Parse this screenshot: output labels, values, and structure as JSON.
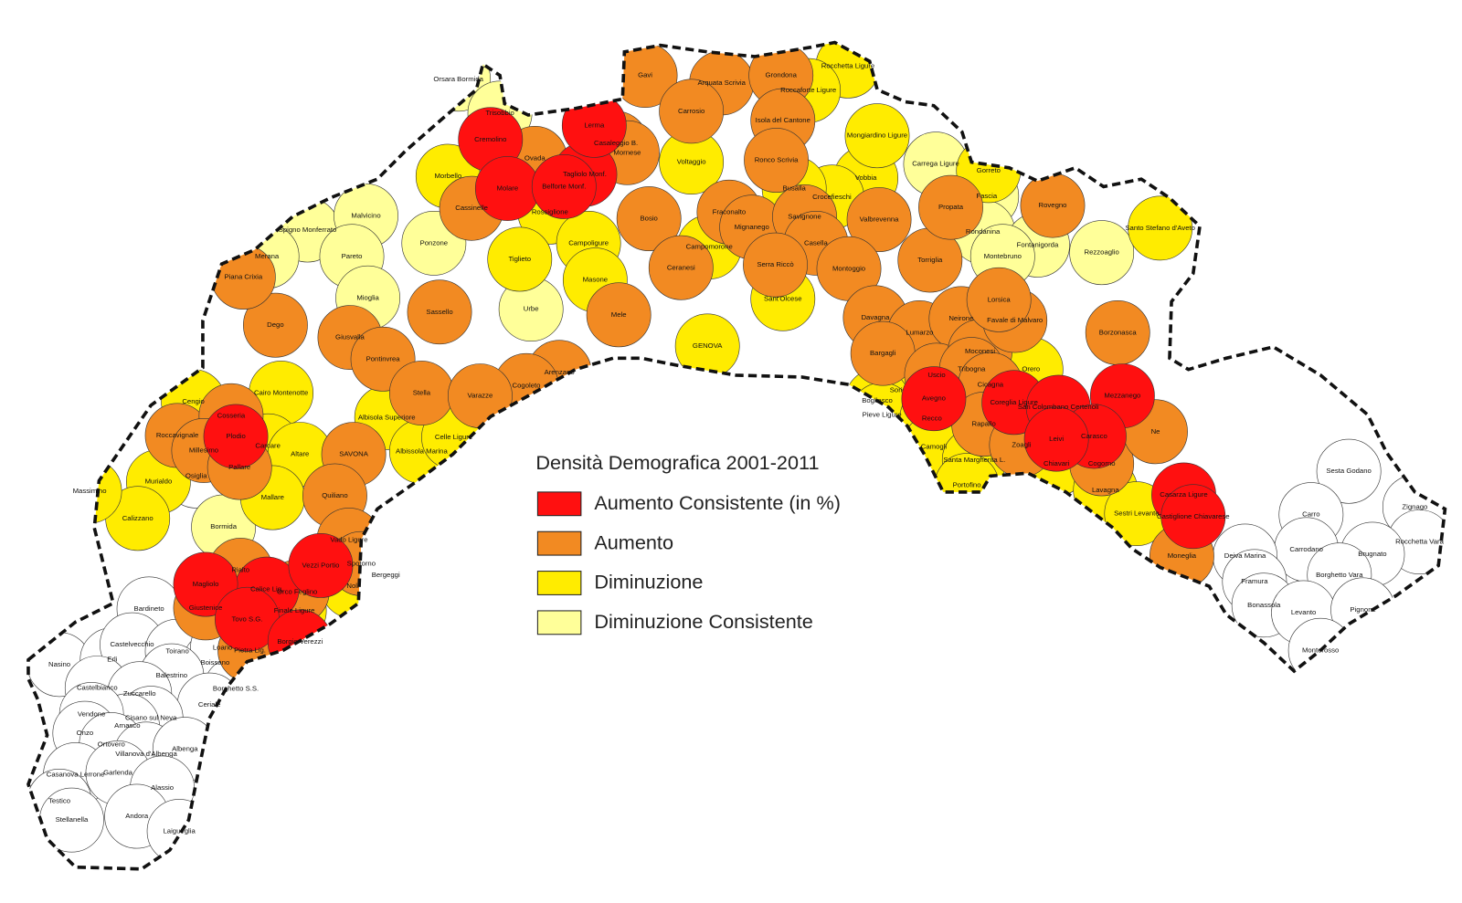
{
  "legend": {
    "title": "Densità Demografica 2001-2011",
    "items": [
      {
        "label": "Aumento Consistente (in %)",
        "color": "#ff1010"
      },
      {
        "label": "Aumento",
        "color": "#f28a22"
      },
      {
        "label": "Diminuzione",
        "color": "#ffec00"
      },
      {
        "label": "Diminuzione Consistente",
        "color": "#ffff99"
      }
    ]
  },
  "map": {
    "areas": [
      {
        "name": "Cremolino",
        "category": 0
      },
      {
        "name": "Molare",
        "category": 0
      },
      {
        "name": "Tagliolo Monf.",
        "category": 0
      },
      {
        "name": "Belforte Monf.",
        "category": 0
      },
      {
        "name": "Lerma",
        "category": 0
      },
      {
        "name": "Plodio",
        "category": 0
      },
      {
        "name": "Calice Lig.",
        "category": 0
      },
      {
        "name": "Magliolo",
        "category": 0
      },
      {
        "name": "Tovo S.G.",
        "category": 0
      },
      {
        "name": "Borgio Verezzi",
        "category": 0
      },
      {
        "name": "Vezzi Portio",
        "category": 0
      },
      {
        "name": "Avegno",
        "category": 0
      },
      {
        "name": "Coreglia Ligure",
        "category": 0
      },
      {
        "name": "San Colombano Certenoli",
        "category": 0
      },
      {
        "name": "Mezzanego",
        "category": 0
      },
      {
        "name": "Carasco",
        "category": 0
      },
      {
        "name": "Leivi",
        "category": 0
      },
      {
        "name": "Casarza Ligure",
        "category": 0
      },
      {
        "name": "Castiglione Chiavarese",
        "category": 0
      },
      {
        "name": "Gavi",
        "category": 1
      },
      {
        "name": "Arquata Scrivia",
        "category": 1
      },
      {
        "name": "Grondona",
        "category": 1
      },
      {
        "name": "Carrosio",
        "category": 1
      },
      {
        "name": "Casaleggio B.",
        "category": 1
      },
      {
        "name": "Mornese",
        "category": 1
      },
      {
        "name": "Ovada",
        "category": 1
      },
      {
        "name": "Cassinelle",
        "category": 1
      },
      {
        "name": "Isola del Cantone",
        "category": 1
      },
      {
        "name": "Ronco Scrivia",
        "category": 1
      },
      {
        "name": "Fraconalto",
        "category": 1
      },
      {
        "name": "Bosio",
        "category": 1
      },
      {
        "name": "Mignanego",
        "category": 1
      },
      {
        "name": "Savignone",
        "category": 1
      },
      {
        "name": "Casella",
        "category": 1
      },
      {
        "name": "Valbrevenna",
        "category": 1
      },
      {
        "name": "Serra Riccò",
        "category": 1
      },
      {
        "name": "Montoggio",
        "category": 1
      },
      {
        "name": "Torriglia",
        "category": 1
      },
      {
        "name": "Ceranesi",
        "category": 1
      },
      {
        "name": "Mele",
        "category": 1
      },
      {
        "name": "Arenzano",
        "category": 1
      },
      {
        "name": "Cogoleto",
        "category": 1
      },
      {
        "name": "Sassello",
        "category": 1
      },
      {
        "name": "Dego",
        "category": 1
      },
      {
        "name": "Giusvalla",
        "category": 1
      },
      {
        "name": "Pontinvrea",
        "category": 1
      },
      {
        "name": "Stella",
        "category": 1
      },
      {
        "name": "Varazze",
        "category": 1
      },
      {
        "name": "Piana Crixia",
        "category": 1
      },
      {
        "name": "Roccavignale",
        "category": 1
      },
      {
        "name": "Cosseria",
        "category": 1
      },
      {
        "name": "Millesimo",
        "category": 1
      },
      {
        "name": "Pallare",
        "category": 1
      },
      {
        "name": "SAVONA",
        "category": 1
      },
      {
        "name": "Quiliano",
        "category": 1
      },
      {
        "name": "Vado Ligure",
        "category": 1
      },
      {
        "name": "Spotorno",
        "category": 1
      },
      {
        "name": "Rialto",
        "category": 1
      },
      {
        "name": "Orco Feglino",
        "category": 1
      },
      {
        "name": "Giustenice",
        "category": 1
      },
      {
        "name": "Pietra Lig.",
        "category": 1
      },
      {
        "name": "Davagna",
        "category": 1
      },
      {
        "name": "Lumarzo",
        "category": 1
      },
      {
        "name": "Neirone",
        "category": 1
      },
      {
        "name": "Bargagli",
        "category": 1
      },
      {
        "name": "Uscio",
        "category": 1
      },
      {
        "name": "Moconesi",
        "category": 1
      },
      {
        "name": "Favale di Malvaro",
        "category": 1
      },
      {
        "name": "Lorsica",
        "category": 1
      },
      {
        "name": "Tribogna",
        "category": 1
      },
      {
        "name": "Cicagna",
        "category": 1
      },
      {
        "name": "Rapallo",
        "category": 1
      },
      {
        "name": "Zoagli",
        "category": 1
      },
      {
        "name": "Cogorno",
        "category": 1
      },
      {
        "name": "Borzonasca",
        "category": 1
      },
      {
        "name": "Ne",
        "category": 1
      },
      {
        "name": "Moneglia",
        "category": 1
      },
      {
        "name": "Rovegno",
        "category": 1
      },
      {
        "name": "Propata",
        "category": 1
      },
      {
        "name": "Rocchetta Ligure",
        "category": 2
      },
      {
        "name": "Roccaforte Ligure",
        "category": 2
      },
      {
        "name": "Voltaggio",
        "category": 2
      },
      {
        "name": "Vobbia",
        "category": 2
      },
      {
        "name": "Crocefieschi",
        "category": 2
      },
      {
        "name": "Busalla",
        "category": 2
      },
      {
        "name": "Mongiardino Ligure",
        "category": 2
      },
      {
        "name": "Morbello",
        "category": 2
      },
      {
        "name": "Rossiglione",
        "category": 2
      },
      {
        "name": "Campoligure",
        "category": 2
      },
      {
        "name": "Masone",
        "category": 2
      },
      {
        "name": "Tiglieto",
        "category": 2
      },
      {
        "name": "Campomorone",
        "category": 2
      },
      {
        "name": "Murialdo",
        "category": 2
      },
      {
        "name": "Calizzano",
        "category": 2
      },
      {
        "name": "Cairo Montenotte",
        "category": 2
      },
      {
        "name": "Carcare",
        "category": 2
      },
      {
        "name": "Altare",
        "category": 2
      },
      {
        "name": "Albisola Superiore",
        "category": 2
      },
      {
        "name": "Albissola Marina",
        "category": 2
      },
      {
        "name": "Celle Ligure",
        "category": 2
      },
      {
        "name": "Mallare",
        "category": 2
      },
      {
        "name": "Bergeggi",
        "category": 2
      },
      {
        "name": "Noli",
        "category": 2
      },
      {
        "name": "Finale Ligure",
        "category": 2
      },
      {
        "name": "Cengio",
        "category": 2
      },
      {
        "name": "Massimino",
        "category": 2
      },
      {
        "name": "GENOVA",
        "category": 2
      },
      {
        "name": "Sant'Olcese",
        "category": 2
      },
      {
        "name": "Sori",
        "category": 2
      },
      {
        "name": "Bogliasco",
        "category": 2
      },
      {
        "name": "Pieve Ligure",
        "category": 2
      },
      {
        "name": "Recco",
        "category": 2
      },
      {
        "name": "Camogli",
        "category": 2
      },
      {
        "name": "Santa Margherita L.",
        "category": 2
      },
      {
        "name": "Portofino",
        "category": 2
      },
      {
        "name": "Chiavari",
        "category": 2
      },
      {
        "name": "Lavagna",
        "category": 2
      },
      {
        "name": "Sestri Levante",
        "category": 2
      },
      {
        "name": "Orero",
        "category": 2
      },
      {
        "name": "Santo Stefano d'Aveto",
        "category": 2
      },
      {
        "name": "Gorreto",
        "category": 2
      },
      {
        "name": "Orsara Bormida",
        "category": 3
      },
      {
        "name": "Trisobbio",
        "category": 3
      },
      {
        "name": "Spigno Monferrato",
        "category": 3
      },
      {
        "name": "Malvicino",
        "category": 3
      },
      {
        "name": "Merana",
        "category": 3
      },
      {
        "name": "Pareto",
        "category": 3
      },
      {
        "name": "Ponzone",
        "category": 3
      },
      {
        "name": "Mioglia",
        "category": 3
      },
      {
        "name": "Urbe",
        "category": 3
      },
      {
        "name": "Carrega Ligure",
        "category": 3
      },
      {
        "name": "Fascia",
        "category": 3
      },
      {
        "name": "Rondanina",
        "category": 3
      },
      {
        "name": "Fontanigorda",
        "category": 3
      },
      {
        "name": "Montebruno",
        "category": 3
      },
      {
        "name": "Rezzoaglio",
        "category": 3
      },
      {
        "name": "Bormida",
        "category": 3
      }
    ],
    "unshaded": [
      "Osiglia",
      "Bardineto",
      "Nasino",
      "Erli",
      "Castelvecchio",
      "Toirano",
      "Boissano",
      "Loano",
      "Balestrino",
      "Castelbianco",
      "Zuccarello",
      "Borghetto S.S.",
      "Ceriale",
      "Cisano sul Neva",
      "Arnasco",
      "Vendone",
      "Onzo",
      "Ortovero",
      "Villanova d'Albenga",
      "Albenga",
      "Casanova Lerrone",
      "Garlenda",
      "Alassio",
      "Testico",
      "Stellanella",
      "Andora",
      "Laigueglia",
      "Sesta Godano",
      "Zignago",
      "Carro",
      "Rocchetta Vara",
      "Carrodano",
      "Brugnato",
      "Deiva Marina",
      "Borghetto Vara",
      "Framura",
      "Bonassola",
      "Levanto",
      "Pignone",
      "Monterosso"
    ]
  }
}
